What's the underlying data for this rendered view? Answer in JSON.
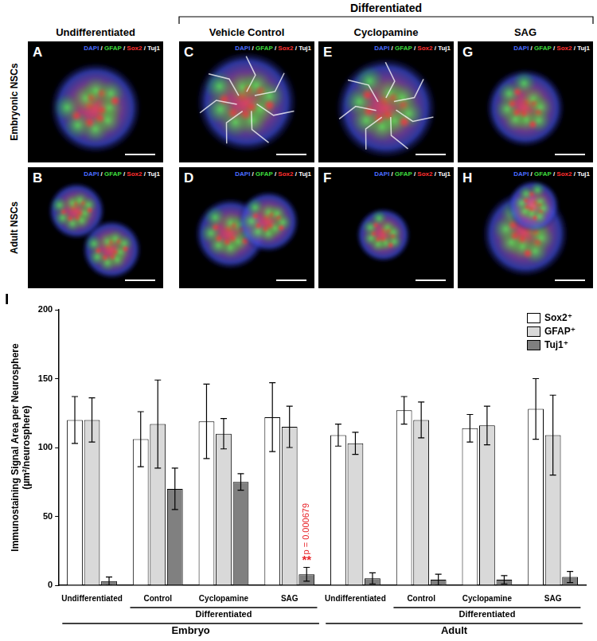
{
  "figure": {
    "header": "Differentiated",
    "columns": [
      "Undifferentiated",
      "Vehicle Control",
      "Cyclopamine",
      "SAG"
    ],
    "rows": [
      "Embryonic NSCs",
      "Adult NSCs"
    ],
    "panels": [
      [
        "A",
        "C",
        "E",
        "G"
      ],
      [
        "B",
        "D",
        "F",
        "H"
      ]
    ],
    "stains": [
      {
        "name": "DAPI",
        "color": "#4a6cff"
      },
      {
        "name": "GFAP",
        "color": "#3ddc3d"
      },
      {
        "name": "Sox2",
        "color": "#ff3030"
      },
      {
        "name": "Tuj1",
        "color": "#ffffff"
      }
    ],
    "stain_separator": "/",
    "chart_panel": "I"
  },
  "chart_data": {
    "type": "bar",
    "y_label": [
      "Immunostaining Signal Area per Neurosphere",
      "(µm²/neurosphere)"
    ],
    "categories": [
      "Undifferentiated",
      "Control",
      "Cyclopamine",
      "SAG",
      "Undifferentiated",
      "Control",
      "Cyclopamine",
      "SAG"
    ],
    "category_groups": [
      {
        "label": "Embryo",
        "categories": [
          "Undifferentiated",
          "Control",
          "Cyclopamine",
          "SAG"
        ],
        "subgroups": [
          {
            "label": "Differentiated",
            "categories": [
              "Control",
              "Cyclopamine",
              "SAG"
            ]
          }
        ]
      },
      {
        "label": "Adult",
        "categories": [
          "Undifferentiated",
          "Control",
          "Cyclopamine",
          "SAG"
        ],
        "subgroups": [
          {
            "label": "Differentiated",
            "categories": [
              "Control",
              "Cyclopamine",
              "SAG"
            ]
          }
        ]
      }
    ],
    "series": [
      {
        "name": "Sox2⁺",
        "color": "#ffffff",
        "values": [
          120,
          106,
          119,
          122,
          109,
          127,
          114,
          128
        ],
        "errors": [
          17,
          20,
          27,
          25,
          8,
          10,
          10,
          22
        ]
      },
      {
        "name": "GFAP⁺",
        "color": "#d9d9d9",
        "values": [
          120,
          117,
          110,
          115,
          103,
          120,
          116,
          109
        ],
        "errors": [
          16,
          32,
          11,
          15,
          8,
          13,
          14,
          29
        ]
      },
      {
        "name": "Tuj1⁺",
        "color": "#808080",
        "values": [
          3,
          70,
          75,
          8,
          5,
          4,
          4,
          6
        ],
        "errors": [
          3,
          15,
          6,
          5,
          4,
          4,
          3,
          4
        ]
      }
    ],
    "ylim": [
      0,
      200
    ],
    "yticks": [
      0,
      50,
      100,
      150,
      200
    ],
    "grid": false,
    "legend": "upper right",
    "annotations": [
      {
        "label": "**",
        "text": "p = 0.000679",
        "group": "Embryo",
        "category": "SAG",
        "series": "Tuj1⁺",
        "color": "#e8252a"
      }
    ]
  }
}
